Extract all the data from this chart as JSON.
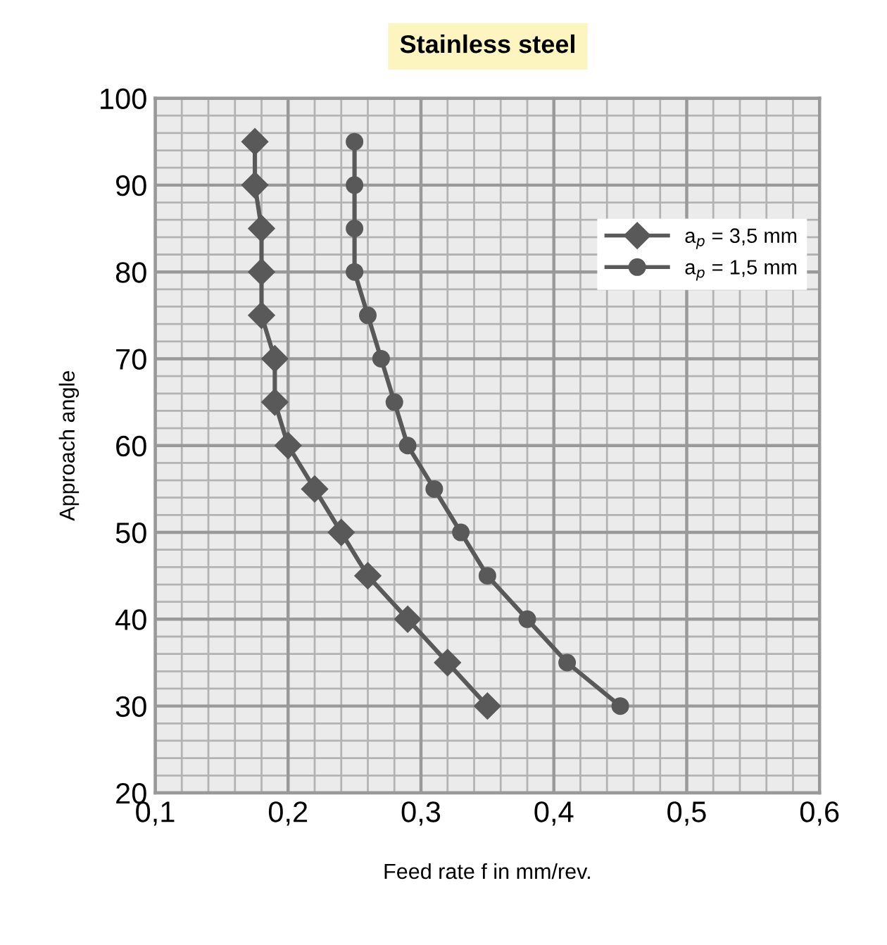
{
  "chart_data": {
    "type": "line",
    "title": "Stainless steel",
    "xlabel": "Feed rate f in mm/rev.",
    "ylabel": "Approach angle",
    "x": [
      95,
      90,
      85,
      80,
      75,
      70,
      65,
      60,
      55,
      50,
      45,
      40,
      35,
      30
    ],
    "series": [
      {
        "name": "a$_{p}$ = 3,5 mm",
        "color": "#595959",
        "marker": "diamond",
        "values": [
          0.175,
          0.175,
          0.18,
          0.18,
          0.18,
          0.19,
          0.19,
          0.2,
          0.22,
          0.24,
          0.26,
          0.29,
          0.32,
          0.35
        ]
      },
      {
        "name": "a$_{p}$ = 1,5 mm",
        "color": "#595959",
        "marker": "circle",
        "values": [
          0.25,
          0.25,
          0.25,
          0.25,
          0.26,
          0.27,
          0.28,
          0.29,
          0.31,
          0.33,
          0.35,
          0.38,
          0.41,
          0.45
        ]
      }
    ],
    "orientation": "horizontal",
    "xlim": [
      0.1,
      0.6
    ],
    "xticks": [
      {
        "value": 0.1,
        "label": "0,1"
      },
      {
        "value": 0.12,
        "label": null
      },
      {
        "value": 0.14,
        "label": null
      },
      {
        "value": 0.16,
        "label": null
      },
      {
        "value": 0.18,
        "label": null
      },
      {
        "value": 0.2,
        "label": "0,2"
      },
      {
        "value": 0.22,
        "label": null
      },
      {
        "value": 0.24,
        "label": null
      },
      {
        "value": 0.26,
        "label": null
      },
      {
        "value": 0.28,
        "label": null
      },
      {
        "value": 0.3,
        "label": "0,3"
      },
      {
        "value": 0.32,
        "label": null
      },
      {
        "value": 0.34,
        "label": null
      },
      {
        "value": 0.36,
        "label": null
      },
      {
        "value": 0.38,
        "label": null
      },
      {
        "value": 0.4,
        "label": "0,4"
      },
      {
        "value": 0.42,
        "label": null
      },
      {
        "value": 0.44,
        "label": null
      },
      {
        "value": 0.46,
        "label": null
      },
      {
        "value": 0.48,
        "label": null
      },
      {
        "value": 0.5,
        "label": "0,5"
      },
      {
        "value": 0.52,
        "label": null
      },
      {
        "value": 0.54,
        "label": null
      },
      {
        "value": 0.56,
        "label": null
      },
      {
        "value": 0.58,
        "label": null
      },
      {
        "value": 0.6,
        "label": "0,6"
      }
    ],
    "ylim": [
      20,
      100
    ],
    "yticks": [
      20,
      {
        "value": 22,
        "label": null
      },
      {
        "value": 24,
        "label": null
      },
      {
        "value": 26,
        "label": null
      },
      {
        "value": 28,
        "label": null
      },
      30,
      {
        "value": 32,
        "label": null
      },
      {
        "value": 34,
        "label": null
      },
      {
        "value": 36,
        "label": null
      },
      {
        "value": 38,
        "label": null
      },
      40,
      {
        "value": 42,
        "label": null
      },
      {
        "value": 44,
        "label": null
      },
      {
        "value": 46,
        "label": null
      },
      {
        "value": 48,
        "label": null
      },
      50,
      {
        "value": 52,
        "label": null
      },
      {
        "value": 54,
        "label": null
      },
      {
        "value": 56,
        "label": null
      },
      {
        "value": 58,
        "label": null
      },
      60,
      {
        "value": 62,
        "label": null
      },
      {
        "value": 64,
        "label": null
      },
      {
        "value": 66,
        "label": null
      },
      {
        "value": 68,
        "label": null
      },
      70,
      {
        "value": 72,
        "label": null
      },
      {
        "value": 74,
        "label": null
      },
      {
        "value": 76,
        "label": null
      },
      {
        "value": 78,
        "label": null
      },
      80,
      {
        "value": 82,
        "label": null
      },
      {
        "value": 84,
        "label": null
      },
      {
        "value": 86,
        "label": null
      },
      {
        "value": 88,
        "label": null
      },
      90,
      {
        "value": 92,
        "label": null
      },
      {
        "value": 94,
        "label": null
      },
      {
        "value": 96,
        "label": null
      },
      {
        "value": 98,
        "label": null
      },
      100
    ],
    "grid": true,
    "legend": "top right",
    "line_style": "solid"
  }
}
